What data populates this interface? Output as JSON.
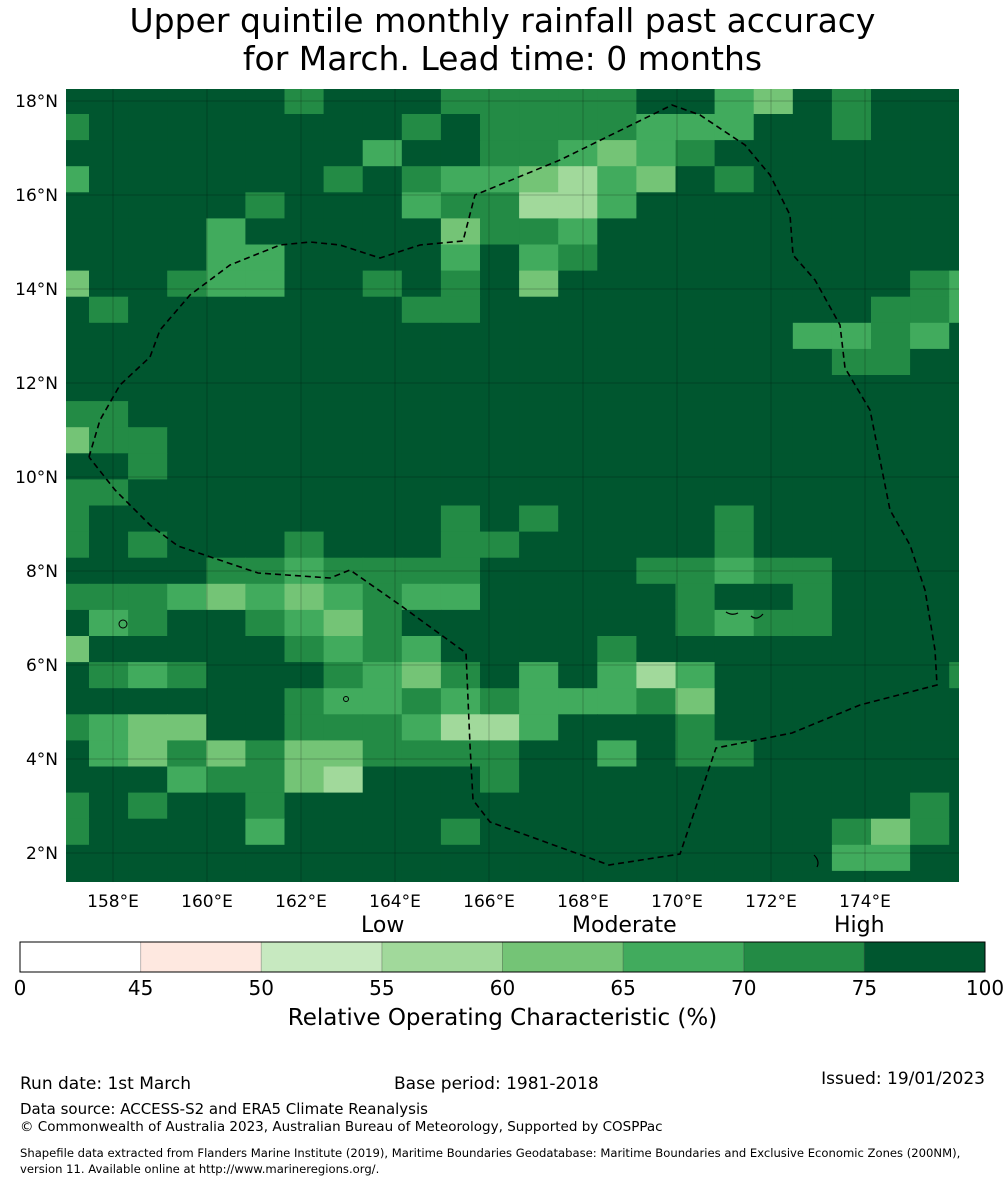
{
  "title": {
    "line1": "Upper quintile monthly rainfall past accuracy",
    "line2": "for March. Lead time: 0 months"
  },
  "map_data": {
    "type": "heatmap",
    "lat_ticks": [
      "18°N",
      "16°N",
      "14°N",
      "12°N",
      "10°N",
      "8°N",
      "6°N",
      "4°N",
      "2°N"
    ],
    "lat_values": [
      18,
      16,
      14,
      12,
      10,
      8,
      6,
      4,
      2
    ],
    "lon_ticks": [
      "158°E",
      "160°E",
      "162°E",
      "164°E",
      "166°E",
      "168°E",
      "170°E",
      "172°E",
      "174°E"
    ],
    "lon_values": [
      158,
      160,
      162,
      164,
      166,
      168,
      170,
      172,
      174
    ],
    "grid_legend": "digit = ROC bin: 0 = 75-100, 1 = 70-75, 2 = 65-70, 3 = 60-65, 4 = 55-60",
    "bin_colors": [
      "#00562f",
      "#238b45",
      "#41ab5d",
      "#74c476",
      "#a1d99b",
      "#c7e9c0"
    ],
    "grid": [
      "000000100011111002301000",
      "100000000101111222001000",
      "000000002001123210000000",
      "200000010122342301000000",
      "000001000211442000000000",
      "000020000031120000000000",
      "000022000020210000000000",
      "300122001010300000000012",
      "010000000110000000000112",
      "000000000000000000022120",
      "000000000000000000001100",
      "000000000000000000000000",
      "110000000000000000000000",
      "311000000000000000000000",
      "001000000000000000000000",
      "110000000000000000000000",
      "100000000010100001000000",
      "101000100011000001000000",
      "000011211110000112110000",
      "111232321220000010010000",
      "021001231000000012110000",
      "300000121200001000000000",
      "012100012310202420000001",
      "000000122121222130000000",
      "123300111244200010000000",
      "023131331111002011000000",
      "000211340001000000000000",
      "101001000000000000000010",
      "100002000010000000001310",
      "000000000000000000002200",
      "000000000000000000000000"
    ]
  },
  "colorbar": {
    "categories": [
      "Low",
      "Moderate",
      "High"
    ],
    "ticks": [
      "0",
      "45",
      "50",
      "55",
      "60",
      "65",
      "70",
      "75",
      "100"
    ],
    "colors": [
      "#ffffff",
      "#fee8e0",
      "#c7e9c0",
      "#a1d99b",
      "#74c476",
      "#41ab5d",
      "#238b45",
      "#00562f"
    ],
    "label": "Relative Operating Characteristic (%)"
  },
  "footer": {
    "run_date": "Run date: 1st March",
    "base_period": "Base period: 1981-2018",
    "issued": "Issued: 19/01/2023",
    "data_source": "Data source: ACCESS-S2 and ERA5 Climate Reanalysis",
    "copyright": "© Commonwealth of Australia 2023, Australian Bureau of Meteorology, Supported by COSPPac",
    "shapefile_line1": "Shapefile data extracted from Flanders Marine Institute (2019), Maritime Boundaries Geodatabase: Maritime Boundaries and Exclusive Economic Zones (200NM),",
    "shapefile_line2": "version 11. Available online at http://www.marineregions.org/."
  }
}
